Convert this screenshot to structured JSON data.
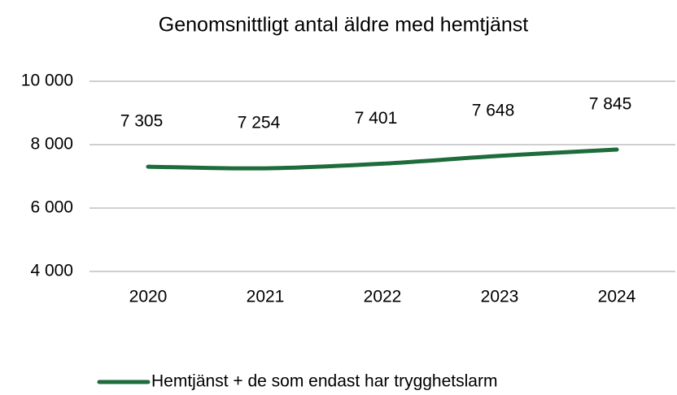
{
  "chart_data": {
    "type": "line",
    "title": "Genomsnittligt antal äldre med hemtjänst",
    "categories": [
      "2020",
      "2021",
      "2022",
      "2023",
      "2024"
    ],
    "series": [
      {
        "name": "Hemtjänst + de som endast har trygghetslarm",
        "color": "#1e6b3c",
        "values": [
          7305,
          7254,
          7401,
          7648,
          7845
        ],
        "value_labels": [
          "7 305",
          "7 254",
          "7 401",
          "7 648",
          "7 845"
        ]
      }
    ],
    "ylim": [
      4000,
      10000
    ],
    "yticks": [
      {
        "value": 4000,
        "label": "4 000"
      },
      {
        "value": 6000,
        "label": "6 000"
      },
      {
        "value": 8000,
        "label": "8 000"
      },
      {
        "value": 10000,
        "label": "10 000"
      }
    ],
    "grid": true,
    "smooth": true,
    "legend": "bottom"
  }
}
